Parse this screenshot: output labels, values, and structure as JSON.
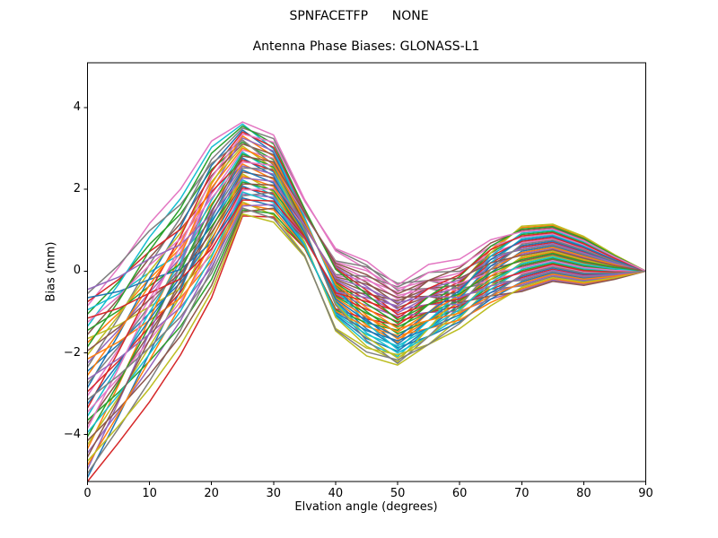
{
  "figure": {
    "suptitle": "SPNFACETFP      NONE",
    "background": "#ffffff"
  },
  "chart_data": {
    "type": "line",
    "title": "Antenna Phase Biases: GLONASS-L1",
    "xlabel": "Elvation angle (degrees)",
    "ylabel": "Bias (mm)",
    "xlim": [
      0,
      90
    ],
    "ylim": [
      -5.15,
      5.1
    ],
    "xticks": [
      0,
      10,
      20,
      30,
      40,
      50,
      60,
      70,
      80,
      90
    ],
    "xtick_labels": [
      "0",
      "10",
      "20",
      "30",
      "40",
      "50",
      "60",
      "70",
      "80",
      "90"
    ],
    "yticks": [
      -4,
      -2,
      0,
      2,
      4
    ],
    "ytick_labels": [
      "−4",
      "−2",
      "0",
      "2",
      "4"
    ],
    "grid": false,
    "legend": false,
    "line_width": 1.5,
    "x": [
      0,
      5,
      10,
      15,
      20,
      25,
      30,
      35,
      40,
      45,
      50,
      55,
      60,
      65,
      70,
      75,
      80,
      85,
      90
    ],
    "band_mid": [
      -2.8,
      -1.9,
      -0.9,
      0.05,
      1.3,
      2.5,
      2.25,
      1.05,
      -0.45,
      -0.9,
      -1.3,
      -0.9,
      -0.6,
      -0.05,
      0.3,
      0.45,
      0.25,
      0.1,
      0
    ],
    "band_halfwidth": [
      2.35,
      2.3,
      2.3,
      2.1,
      1.95,
      1.15,
      1.15,
      0.8,
      1.15,
      1.25,
      1.0,
      1.15,
      1.0,
      0.95,
      0.8,
      0.7,
      0.6,
      0.3,
      0
    ],
    "series_count": 48,
    "anchor_x": [
      0,
      25,
      50,
      70
    ],
    "series_positions": {
      "at0": [
        27,
        34,
        41,
        0,
        7,
        14,
        21,
        28,
        35,
        42,
        1,
        8,
        15,
        22,
        29,
        36,
        43,
        2,
        9,
        16,
        23,
        30,
        37,
        44,
        3,
        10,
        17,
        24,
        31,
        38,
        45,
        4,
        11,
        18,
        25,
        32,
        39,
        46,
        5,
        12,
        19,
        26,
        33,
        40,
        47,
        6,
        13,
        20
      ],
      "at25": [
        15,
        26,
        37,
        0,
        11,
        22,
        33,
        44,
        7,
        18,
        29,
        40,
        3,
        14,
        25,
        36,
        47,
        10,
        21,
        32,
        43,
        6,
        17,
        28,
        39,
        2,
        13,
        24,
        35,
        46,
        9,
        20,
        31,
        42,
        5,
        16,
        27,
        38,
        1,
        12,
        23,
        34,
        45,
        8,
        19,
        30,
        41,
        4
      ],
      "at50": [
        8,
        13,
        18,
        23,
        28,
        33,
        38,
        43,
        0,
        5,
        10,
        15,
        20,
        25,
        30,
        35,
        40,
        45,
        2,
        7,
        12,
        17,
        22,
        27,
        32,
        37,
        42,
        47,
        4,
        9,
        14,
        19,
        24,
        29,
        34,
        39,
        44,
        1,
        6,
        11,
        16,
        21,
        26,
        31,
        36,
        41,
        46,
        3
      ],
      "at70": [
        29,
        46,
        15,
        32,
        1,
        18,
        35,
        4,
        21,
        38,
        7,
        24,
        41,
        10,
        27,
        44,
        13,
        30,
        47,
        16,
        33,
        2,
        19,
        36,
        5,
        22,
        39,
        8,
        25,
        42,
        11,
        28,
        45,
        14,
        31,
        0,
        17,
        34,
        3,
        20,
        37,
        6,
        23,
        40,
        9,
        26,
        43,
        12
      ]
    },
    "color_cycle": [
      "#1f77b4",
      "#ff7f0e",
      "#2ca02c",
      "#d62728",
      "#9467bd",
      "#8c564b",
      "#e377c2",
      "#7f7f7f",
      "#bcbd22",
      "#17becf"
    ]
  }
}
